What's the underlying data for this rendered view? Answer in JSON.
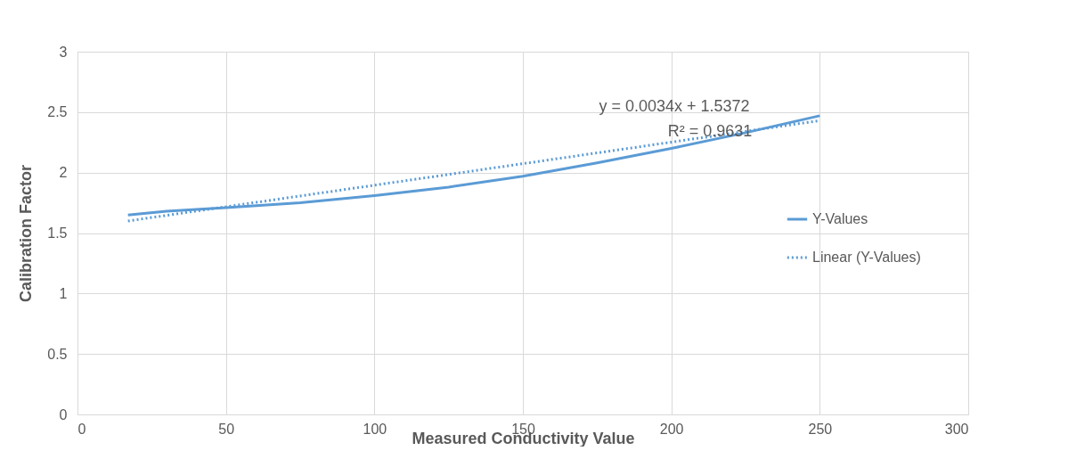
{
  "chart_data": {
    "type": "line",
    "xlabel": "Measured Conductivity Value",
    "ylabel": "Calibration Factor",
    "xlim": [
      0,
      300
    ],
    "xticks": [
      0,
      50,
      100,
      150,
      200,
      250,
      300
    ],
    "ylim": [
      0,
      3
    ],
    "yticks": [
      0,
      0.5,
      1,
      1.5,
      2,
      2.5,
      3
    ],
    "grid": true,
    "legend": "right",
    "marker": "none",
    "series": [
      {
        "name": "Y-Values",
        "color": "#5b9bd5",
        "line_style": "solid",
        "x": [
          17,
          30,
          50,
          75,
          100,
          125,
          150,
          175,
          200,
          225,
          250
        ],
        "values": [
          1.65,
          1.68,
          1.71,
          1.75,
          1.81,
          1.88,
          1.97,
          2.08,
          2.2,
          2.33,
          2.47
        ]
      },
      {
        "name": "Linear (Y-Values)",
        "color": "#5b9bd5",
        "line_style": "dotted",
        "x": [
          17,
          250
        ],
        "values": [
          1.6,
          2.43
        ]
      }
    ],
    "annotations": [
      "y = 0.0034x + 1.5372",
      "R² = 0.9631"
    ]
  }
}
